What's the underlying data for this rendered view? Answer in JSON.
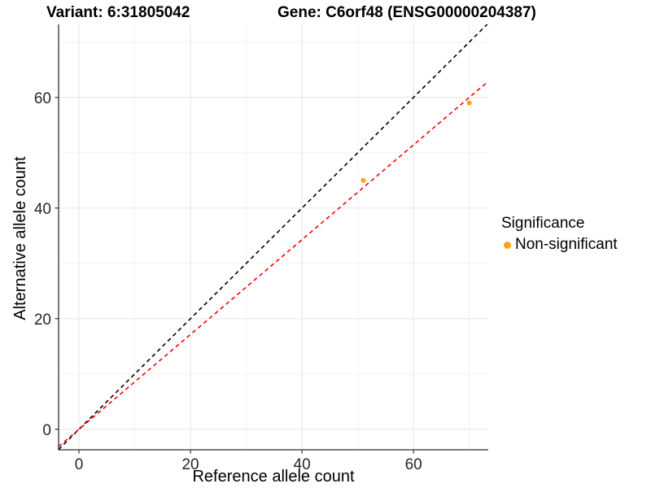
{
  "chart_data": {
    "type": "scatter",
    "title_left": "Variant: 6:31805042",
    "title_right": "Gene: C6orf48 (ENSG00000204387)",
    "xlabel": "Reference allele count",
    "ylabel": "Alternative allele count",
    "xlim": [
      -3.65,
      73.4
    ],
    "ylim": [
      -3.7,
      73.2
    ],
    "xticks": [
      0,
      20,
      40,
      60
    ],
    "yticks": [
      0,
      20,
      40,
      60
    ],
    "xminor": [
      10,
      30,
      50,
      70
    ],
    "yminor": [
      10,
      30,
      50,
      70
    ],
    "grid": true,
    "series": [
      {
        "name": "Non-significant",
        "color": "#FFA319",
        "points": [
          [
            51,
            45
          ],
          [
            70,
            59
          ]
        ]
      }
    ],
    "lines": [
      {
        "name": "identity-line",
        "color": "#000000",
        "style": "dashed",
        "slope": 1.0,
        "intercept": 0
      },
      {
        "name": "fit-line",
        "color": "#FF0000",
        "style": "dashed",
        "slope": 0.857,
        "intercept": 0
      }
    ],
    "legend": {
      "title": "Significance",
      "position": "right",
      "items": [
        {
          "label": "Non-significant",
          "color": "#FFA319"
        }
      ]
    },
    "colors": {
      "grid_major": "#e8e8e8",
      "grid_minor": "#f4f4f4",
      "axis_line": "#2f2f2f",
      "tick_text": "#262626"
    }
  }
}
